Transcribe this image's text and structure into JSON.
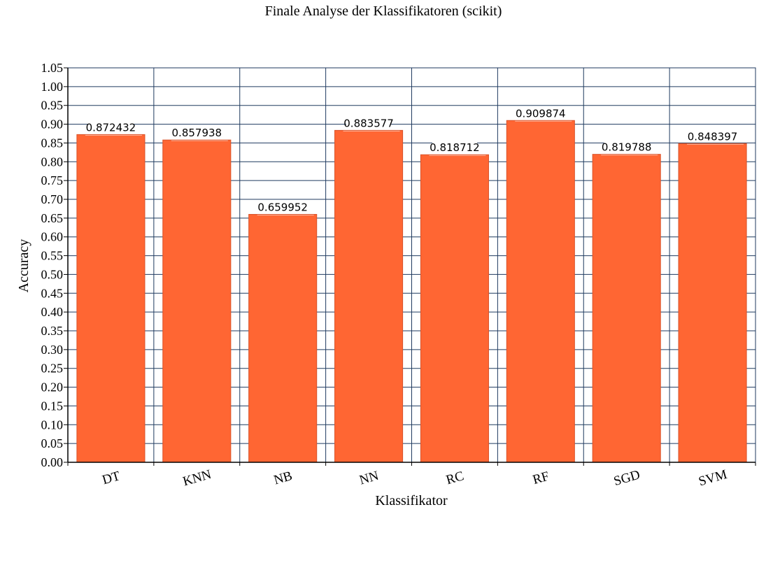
{
  "chart_data": {
    "type": "bar",
    "title": "Finale Analyse der Klassifikatoren (scikit)",
    "xlabel": "Klassifikator",
    "ylabel": "Accuracy",
    "ylim": [
      0,
      1.05
    ],
    "ytick_step": 0.05,
    "grid": true,
    "categories": [
      "DT",
      "KNN",
      "NB",
      "NN",
      "RC",
      "RF",
      "SGD",
      "SVM"
    ],
    "values": [
      0.872432,
      0.857938,
      0.659952,
      0.883577,
      0.818712,
      0.909874,
      0.819788,
      0.848397
    ],
    "value_labels": [
      "0.872432",
      "0.857938",
      "0.659952",
      "0.883577",
      "0.818712",
      "0.909874",
      "0.819788",
      "0.848397"
    ],
    "colors": {
      "bar": "#ff6633",
      "bar_edge": "#d9532a",
      "grid": "#1f3a5f",
      "axis": "#000000"
    }
  }
}
